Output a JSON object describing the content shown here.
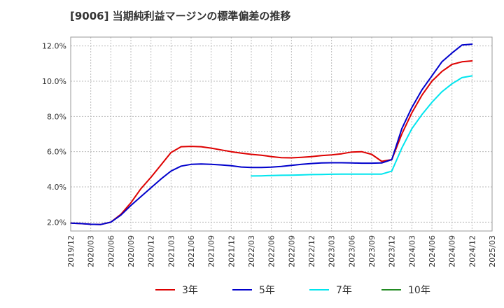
{
  "chart_data": {
    "type": "line",
    "title": "[9006]  当期純利益マージンの標準偏差の推移",
    "x_ticks": [
      "2019/12",
      "2020/03",
      "2020/06",
      "2020/09",
      "2020/12",
      "2021/03",
      "2021/06",
      "2021/09",
      "2021/12",
      "2022/03",
      "2022/06",
      "2022/09",
      "2022/12",
      "2023/03",
      "2023/06",
      "2023/09",
      "2023/12",
      "2024/03",
      "2024/06",
      "2024/09",
      "2024/12",
      "2025/03"
    ],
    "y_ticks": [
      "2.0%",
      "4.0%",
      "6.0%",
      "8.0%",
      "10.0%",
      "12.0%"
    ],
    "ylim": [
      1.5,
      12.5
    ],
    "xlim": [
      0,
      21
    ],
    "grid": true,
    "legend_position": "bottom",
    "series": [
      {
        "name": "3年",
        "color": "#dd0000",
        "x": [
          0,
          0.5,
          1,
          1.5,
          2,
          2.5,
          3,
          3.5,
          4,
          4.5,
          5,
          5.5,
          6,
          6.5,
          7,
          7.5,
          8,
          8.5,
          9,
          9.5,
          10,
          10.5,
          11,
          11.5,
          12,
          12.5,
          13,
          13.5,
          14,
          14.5,
          15,
          15.5,
          16,
          16.5,
          17,
          17.5,
          18,
          18.5,
          19,
          19.5,
          20
        ],
        "y": [
          1.95,
          1.92,
          1.88,
          1.87,
          2.0,
          2.45,
          3.1,
          3.9,
          4.55,
          5.25,
          5.95,
          6.28,
          6.3,
          6.28,
          6.2,
          6.1,
          6.0,
          5.92,
          5.85,
          5.8,
          5.72,
          5.66,
          5.65,
          5.68,
          5.72,
          5.78,
          5.82,
          5.88,
          5.98,
          6.0,
          5.85,
          5.45,
          5.55,
          7.0,
          8.2,
          9.2,
          10.0,
          10.55,
          10.95,
          11.1,
          11.15
        ]
      },
      {
        "name": "5年",
        "color": "#0000cc",
        "x": [
          0,
          0.5,
          1,
          1.5,
          2,
          2.5,
          3,
          3.5,
          4,
          4.5,
          5,
          5.5,
          6,
          6.5,
          7,
          7.5,
          8,
          8.5,
          9,
          9.5,
          10,
          10.5,
          11,
          11.5,
          12,
          12.5,
          13,
          13.5,
          14,
          14.5,
          15,
          15.5,
          16,
          16.5,
          17,
          17.5,
          18,
          18.5,
          19,
          19.5,
          20
        ],
        "y": [
          1.95,
          1.92,
          1.88,
          1.87,
          2.0,
          2.4,
          2.95,
          3.45,
          3.95,
          4.45,
          4.9,
          5.18,
          5.28,
          5.3,
          5.28,
          5.25,
          5.2,
          5.13,
          5.1,
          5.1,
          5.12,
          5.16,
          5.22,
          5.28,
          5.33,
          5.36,
          5.37,
          5.37,
          5.36,
          5.35,
          5.35,
          5.36,
          5.55,
          7.3,
          8.5,
          9.5,
          10.3,
          11.1,
          11.6,
          12.05,
          12.1
        ]
      },
      {
        "name": "7年",
        "color": "#00e5ee",
        "x": [
          9,
          9.5,
          10,
          10.5,
          11,
          11.5,
          12,
          12.5,
          13,
          13.5,
          14,
          14.5,
          15,
          15.5,
          16,
          16.5,
          17,
          17.5,
          18,
          18.5,
          19,
          19.5,
          20
        ],
        "y": [
          4.62,
          4.63,
          4.65,
          4.66,
          4.67,
          4.68,
          4.7,
          4.71,
          4.72,
          4.73,
          4.73,
          4.73,
          4.73,
          4.73,
          4.9,
          6.2,
          7.3,
          8.1,
          8.8,
          9.4,
          9.85,
          10.2,
          10.3
        ]
      },
      {
        "name": "10年",
        "color": "#228b22",
        "x": [],
        "y": []
      }
    ]
  }
}
